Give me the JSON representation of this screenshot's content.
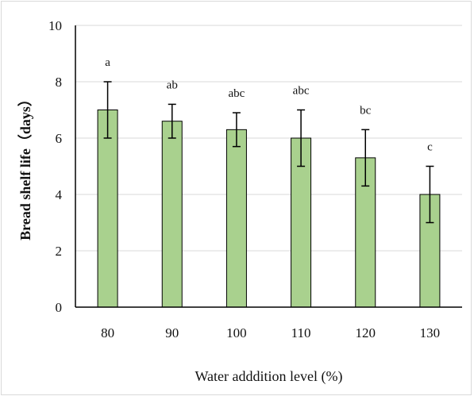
{
  "chart_data": {
    "type": "bar",
    "categories": [
      "80",
      "90",
      "100",
      "110",
      "120",
      "130"
    ],
    "values": [
      7.0,
      6.6,
      6.3,
      6.0,
      5.3,
      4.0
    ],
    "error": [
      1.0,
      0.6,
      0.6,
      1.0,
      1.0,
      1.0
    ],
    "labels": [
      "a",
      "ab",
      "abc",
      "abc",
      "bc",
      "c"
    ],
    "xlabel": "Water adddition level (%)",
    "ylabel": "Bread shelf life（days）",
    "ylim": [
      0,
      10
    ],
    "yticks": [
      0,
      2,
      4,
      6,
      8,
      10
    ],
    "grid": true,
    "bar_color": "#a9d18e",
    "bar_edge": "#000000",
    "grid_color": "#d9d9d9"
  }
}
